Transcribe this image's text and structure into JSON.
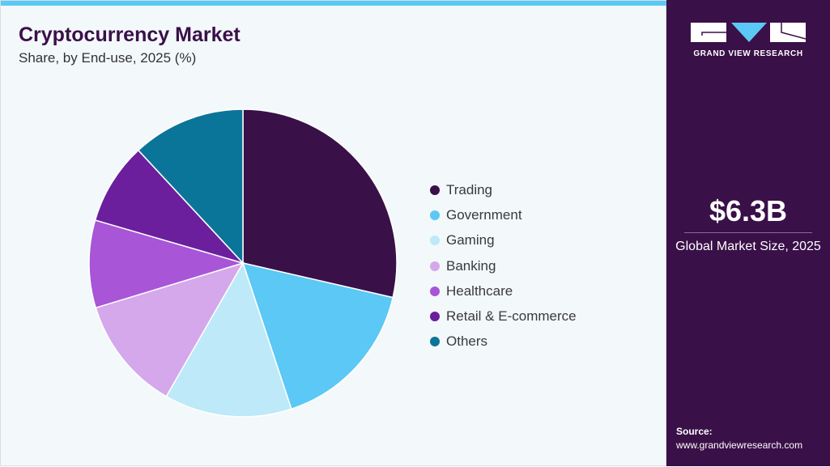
{
  "chart_data": {
    "type": "pie",
    "title": "Cryptocurrency Market",
    "subtitle": "Share, by End-use, 2025 (%)",
    "categories": [
      "Trading",
      "Government",
      "Gaming",
      "Banking",
      "Healthcare",
      "Retail & E-commerce",
      "Others"
    ],
    "values": [
      28.6,
      16.3,
      13.4,
      12.0,
      9.2,
      8.6,
      11.9
    ],
    "colors": [
      "#3a1048",
      "#5bc8f5",
      "#bde9f9",
      "#d4a8ea",
      "#a855d8",
      "#6b1f9c",
      "#0b7599"
    ],
    "start": "top, clockwise",
    "legend": "right"
  },
  "sidebar": {
    "brand": "GRAND VIEW RESEARCH",
    "market_size": "$6.3B",
    "market_label": "Global Market Size, 2025",
    "source_label": "Source:",
    "source_url": "www.grandviewresearch.com"
  },
  "colors": {
    "accent": "#5bc8f5",
    "panel": "#3a1048",
    "background": "#f3f8fb"
  }
}
